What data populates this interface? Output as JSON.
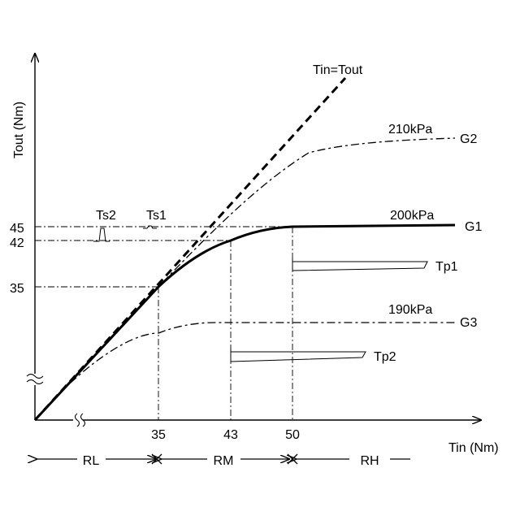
{
  "chart_data": {
    "type": "line",
    "title": "",
    "xlabel": "Tin (Nm)",
    "ylabel": "Tout (Nm)",
    "x_ticks": [
      "35",
      "43",
      "50"
    ],
    "y_ticks": [
      "35",
      "42",
      "45"
    ],
    "x_axis_break": true,
    "y_axis_break": true,
    "grid": false,
    "series": [
      {
        "name": "Tin=Tout",
        "style": "dashed",
        "points": [
          [
            0,
            0
          ],
          [
            35,
            35
          ],
          [
            68,
            68
          ]
        ]
      },
      {
        "name": "G1",
        "pressure_label": "200kPa",
        "style": "solid-bold",
        "points": [
          [
            0,
            0
          ],
          [
            35,
            35
          ],
          [
            43,
            42
          ],
          [
            50,
            45
          ],
          [
            67,
            45
          ]
        ]
      },
      {
        "name": "G2",
        "pressure_label": "210kPa",
        "style": "dash-dot",
        "points": [
          [
            0,
            0
          ],
          [
            35,
            35
          ],
          [
            50,
            57
          ],
          [
            67,
            61
          ]
        ]
      },
      {
        "name": "G3",
        "pressure_label": "190kPa",
        "style": "dash-dot",
        "points": [
          [
            0,
            0
          ],
          [
            35,
            17
          ],
          [
            43,
            20
          ],
          [
            67,
            20
          ]
        ]
      }
    ],
    "annotations": {
      "torque_spikes": [
        "Ts2",
        "Ts1"
      ],
      "torque_pulses": [
        "Tp1",
        "Tp2"
      ]
    },
    "ranges": {
      "labels": [
        "RL",
        "RM",
        "RH"
      ]
    }
  }
}
